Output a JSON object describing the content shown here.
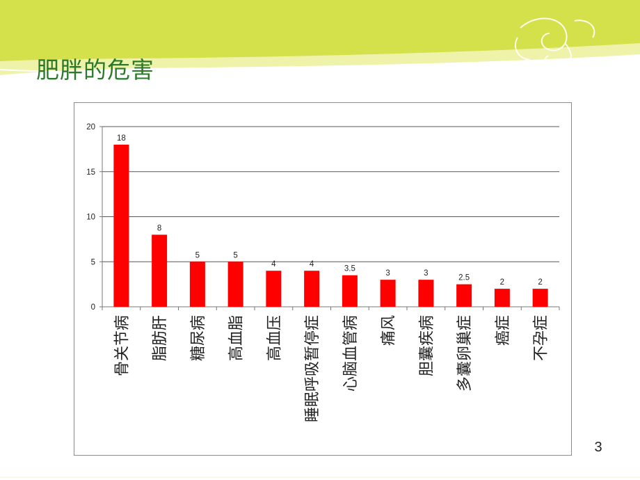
{
  "slide": {
    "title": "肥胖的危害",
    "page_number": "3",
    "colors": {
      "title": "#2a7a2a",
      "header_lime": "#d4e14a",
      "header_light": "#eef3a9",
      "bar": "#ff0000"
    },
    "decoration": "green-swirl-ornament"
  },
  "chart_data": {
    "type": "bar",
    "categories": [
      "骨关节病",
      "脂肪肝",
      "糖尿病",
      "高血脂",
      "高血压",
      "睡眠呼吸暂停症",
      "心脑血管病",
      "痛风",
      "胆囊疾病",
      "多囊卵巢症",
      "癌症",
      "不孕症"
    ],
    "values": [
      18,
      8,
      5,
      5,
      4,
      4,
      3.5,
      3,
      3,
      2.5,
      2,
      2
    ],
    "data_labels": [
      "18",
      "8",
      "5",
      "5",
      "4",
      "4",
      "3.5",
      "3",
      "3",
      "2.5",
      "2",
      "2"
    ],
    "ylim": [
      0,
      20
    ],
    "yticks": [
      0,
      5,
      10,
      15,
      20
    ],
    "ytick_labels": [
      "0",
      "5",
      "10",
      "15",
      "20"
    ],
    "grid": true,
    "legend": "none",
    "title": "",
    "xlabel": "",
    "ylabel": ""
  }
}
